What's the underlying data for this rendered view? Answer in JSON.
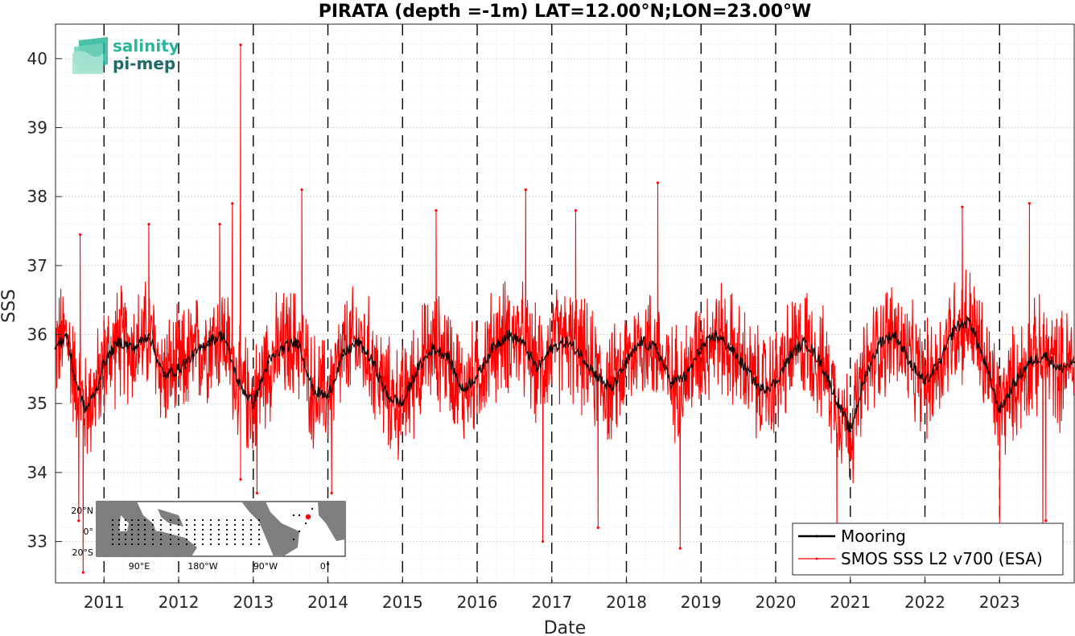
{
  "chart_data": {
    "type": "line",
    "title": "PIRATA (depth =-1m) LAT=12.00°N;LON=23.00°W",
    "xlabel": "Date",
    "ylabel": "SSS",
    "xlim": [
      2010.35,
      2024.0
    ],
    "ylim": [
      32.4,
      40.5
    ],
    "x_ticks": [
      "2011",
      "2012",
      "2013",
      "2014",
      "2015",
      "2016",
      "2017",
      "2018",
      "2019",
      "2020",
      "2021",
      "2022",
      "2023"
    ],
    "y_ticks": [
      "33",
      "34",
      "35",
      "36",
      "37",
      "38",
      "39",
      "40"
    ],
    "year_boundaries": [
      2011,
      2012,
      2013,
      2014,
      2015,
      2016,
      2017,
      2018,
      2019,
      2020,
      2021,
      2022,
      2023
    ],
    "grid": true,
    "legend_position": "bottom-right",
    "series": [
      {
        "name": "Mooring",
        "color": "#000000",
        "x": [
          2010.35,
          2010.5,
          2010.6,
          2010.75,
          2010.9,
          2011.0,
          2011.2,
          2011.4,
          2011.6,
          2011.8,
          2012.0,
          2012.2,
          2012.4,
          2012.6,
          2012.8,
          2013.0,
          2013.2,
          2013.4,
          2013.6,
          2013.8,
          2014.0,
          2014.2,
          2014.4,
          2014.6,
          2014.8,
          2015.0,
          2015.2,
          2015.4,
          2015.6,
          2015.8,
          2016.0,
          2016.2,
          2016.4,
          2016.6,
          2016.8,
          2017.0,
          2017.2,
          2017.4,
          2017.6,
          2017.8,
          2018.0,
          2018.2,
          2018.4,
          2018.6,
          2018.8,
          2019.0,
          2019.2,
          2019.4,
          2019.6,
          2019.8,
          2020.0,
          2020.2,
          2020.4,
          2020.6,
          2020.8,
          2021.0,
          2021.2,
          2021.4,
          2021.6,
          2021.8,
          2022.0,
          2022.2,
          2022.4,
          2022.6,
          2022.8,
          2023.0,
          2023.2,
          2023.4,
          2023.6,
          2023.8,
          2024.0
        ],
        "values": [
          35.8,
          36.0,
          35.4,
          34.9,
          35.2,
          35.6,
          35.9,
          35.8,
          36.0,
          35.4,
          35.5,
          35.7,
          35.9,
          36.0,
          35.3,
          35.0,
          35.6,
          35.8,
          35.9,
          35.2,
          35.1,
          35.7,
          35.9,
          35.6,
          35.1,
          35.0,
          35.5,
          35.8,
          35.7,
          35.2,
          35.4,
          35.8,
          36.0,
          35.9,
          35.5,
          35.8,
          35.9,
          35.7,
          35.4,
          35.2,
          35.6,
          35.9,
          35.8,
          35.3,
          35.4,
          35.8,
          36.0,
          35.8,
          35.5,
          35.2,
          35.3,
          35.7,
          35.9,
          35.6,
          35.1,
          34.6,
          35.4,
          35.9,
          36.0,
          35.6,
          35.3,
          35.6,
          36.1,
          36.2,
          35.6,
          34.9,
          35.3,
          35.6,
          35.7,
          35.5,
          35.6
        ]
      },
      {
        "name": "SMOS SSS L2 v700 (ESA)",
        "color": "#ff0000",
        "spikes": [
          {
            "x": 2010.68,
            "y": 37.45
          },
          {
            "x": 2010.72,
            "y": 32.55
          },
          {
            "x": 2010.66,
            "y": 33.3
          },
          {
            "x": 2011.6,
            "y": 37.6
          },
          {
            "x": 2012.55,
            "y": 37.6
          },
          {
            "x": 2012.72,
            "y": 37.9
          },
          {
            "x": 2012.83,
            "y": 40.2
          },
          {
            "x": 2012.83,
            "y": 33.9
          },
          {
            "x": 2013.05,
            "y": 33.7
          },
          {
            "x": 2013.65,
            "y": 38.1
          },
          {
            "x": 2014.05,
            "y": 33.7
          },
          {
            "x": 2015.45,
            "y": 37.8
          },
          {
            "x": 2016.65,
            "y": 38.1
          },
          {
            "x": 2016.88,
            "y": 33.0
          },
          {
            "x": 2017.32,
            "y": 37.8
          },
          {
            "x": 2017.62,
            "y": 33.2
          },
          {
            "x": 2018.42,
            "y": 38.2
          },
          {
            "x": 2018.72,
            "y": 32.9
          },
          {
            "x": 2020.82,
            "y": 33.2
          },
          {
            "x": 2022.5,
            "y": 37.85
          },
          {
            "x": 2023.0,
            "y": 33.1
          },
          {
            "x": 2023.4,
            "y": 37.9
          },
          {
            "x": 2023.58,
            "y": 33.1
          },
          {
            "x": 2023.62,
            "y": 33.3
          }
        ],
        "noise_amplitude": 1.0
      }
    ]
  },
  "logo": {
    "line1": "salinity",
    "line2": "pi-mep",
    "color1": "#2bb59a",
    "color2": "#1f6a66"
  },
  "inset_map": {
    "x_ticks": [
      "90°E",
      "180°W",
      "90°W",
      "0°"
    ],
    "y_ticks": [
      "20°N",
      "0°",
      "20°S"
    ],
    "highlight_color": "#ff0000"
  }
}
